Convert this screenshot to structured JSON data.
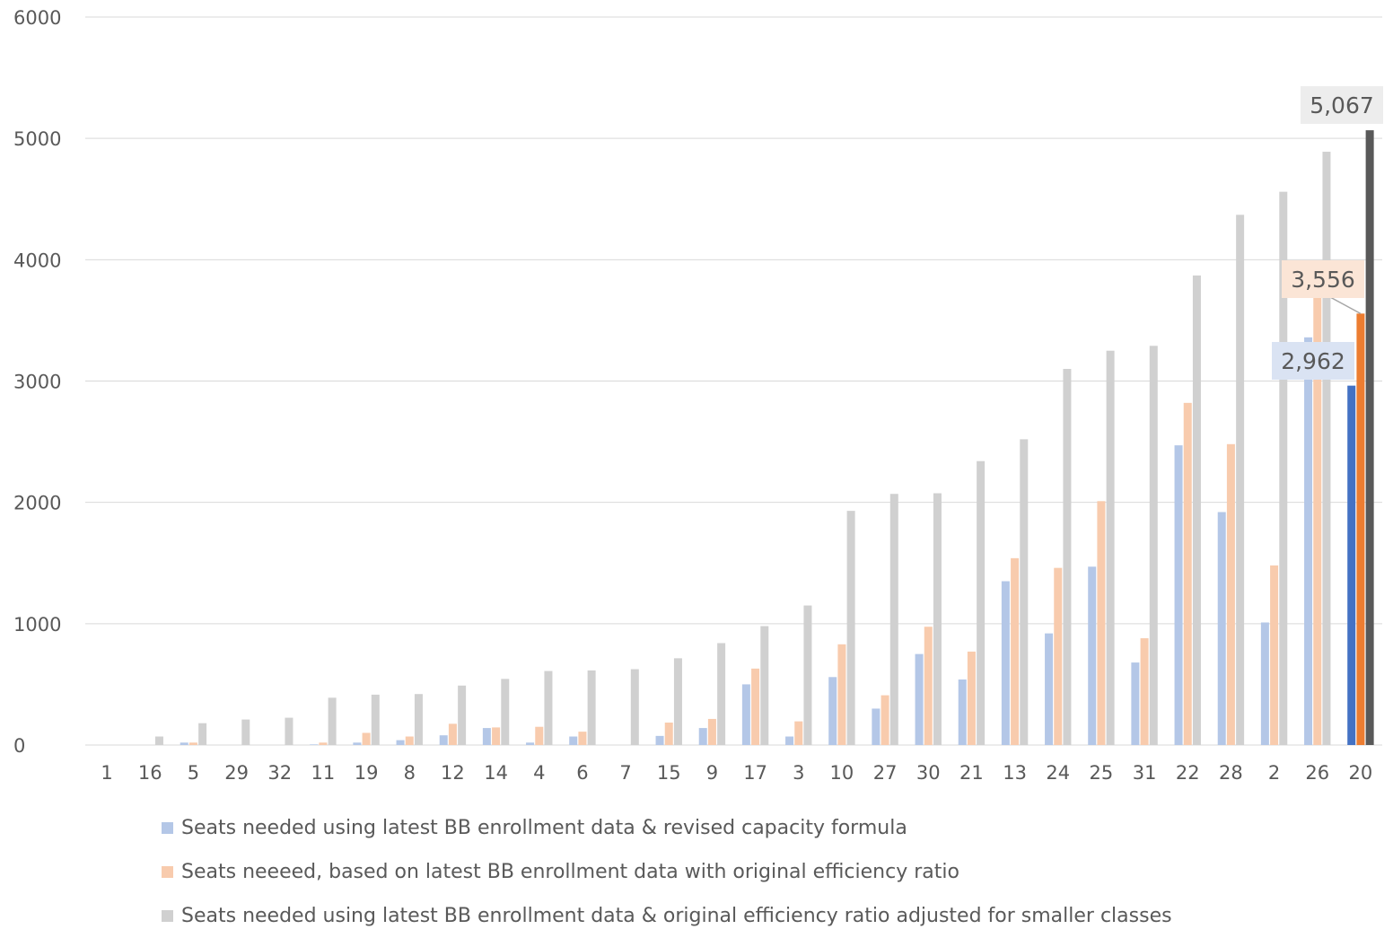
{
  "chart_data": {
    "type": "bar",
    "categories": [
      "1",
      "16",
      "5",
      "29",
      "32",
      "11",
      "19",
      "8",
      "12",
      "14",
      "4",
      "6",
      "7",
      "15",
      "9",
      "17",
      "3",
      "10",
      "27",
      "30",
      "21",
      "13",
      "24",
      "25",
      "31",
      "22",
      "28",
      "2",
      "26",
      "20"
    ],
    "series": [
      {
        "name": "Seats needed using latest BB enrollment data & revised capacity formula",
        "color": "#b4c7e7",
        "highlight_color": "#4472c4",
        "values": [
          0,
          0,
          20,
          0,
          0,
          5,
          20,
          40,
          80,
          140,
          20,
          70,
          0,
          75,
          140,
          500,
          70,
          560,
          300,
          750,
          540,
          1350,
          920,
          1470,
          680,
          2470,
          1920,
          1010,
          3360,
          2962
        ]
      },
      {
        "name": "Seats neeeed, based on latest BB enrollment data with original efficiency ratio",
        "color": "#f8cbad",
        "highlight_color": "#ed7d31",
        "values": [
          0,
          0,
          20,
          0,
          0,
          20,
          100,
          70,
          175,
          145,
          150,
          110,
          0,
          185,
          215,
          630,
          195,
          830,
          410,
          975,
          770,
          1540,
          1460,
          2010,
          880,
          2820,
          2480,
          1480,
          3700,
          3556
        ]
      },
      {
        "name": "Seats needed using latest BB enrollment data & original efficiency ratio adjusted for smaller classes",
        "color": "#d0d0d0",
        "highlight_color": "#595959",
        "values": [
          0,
          70,
          180,
          210,
          225,
          390,
          415,
          420,
          490,
          545,
          610,
          615,
          625,
          715,
          840,
          980,
          1150,
          1930,
          2070,
          2075,
          2340,
          2520,
          3100,
          3250,
          3290,
          3870,
          4370,
          4560,
          4890,
          5067
        ]
      }
    ],
    "ylim": [
      0,
      6000
    ],
    "yticks": [
      0,
      1000,
      2000,
      3000,
      4000,
      5000,
      6000
    ],
    "grid": true,
    "legend_position": "bottom",
    "annotations": [
      {
        "label": "2,962",
        "series": 0,
        "category": "20",
        "bg": "#dae3f3"
      },
      {
        "label": "3,556",
        "series": 1,
        "category": "20",
        "bg": "#fbe5d6"
      },
      {
        "label": "5,067",
        "series": 2,
        "category": "20",
        "bg": "#ededed"
      }
    ],
    "text_color": "#595959",
    "grid_color": "#d9d9d9"
  }
}
